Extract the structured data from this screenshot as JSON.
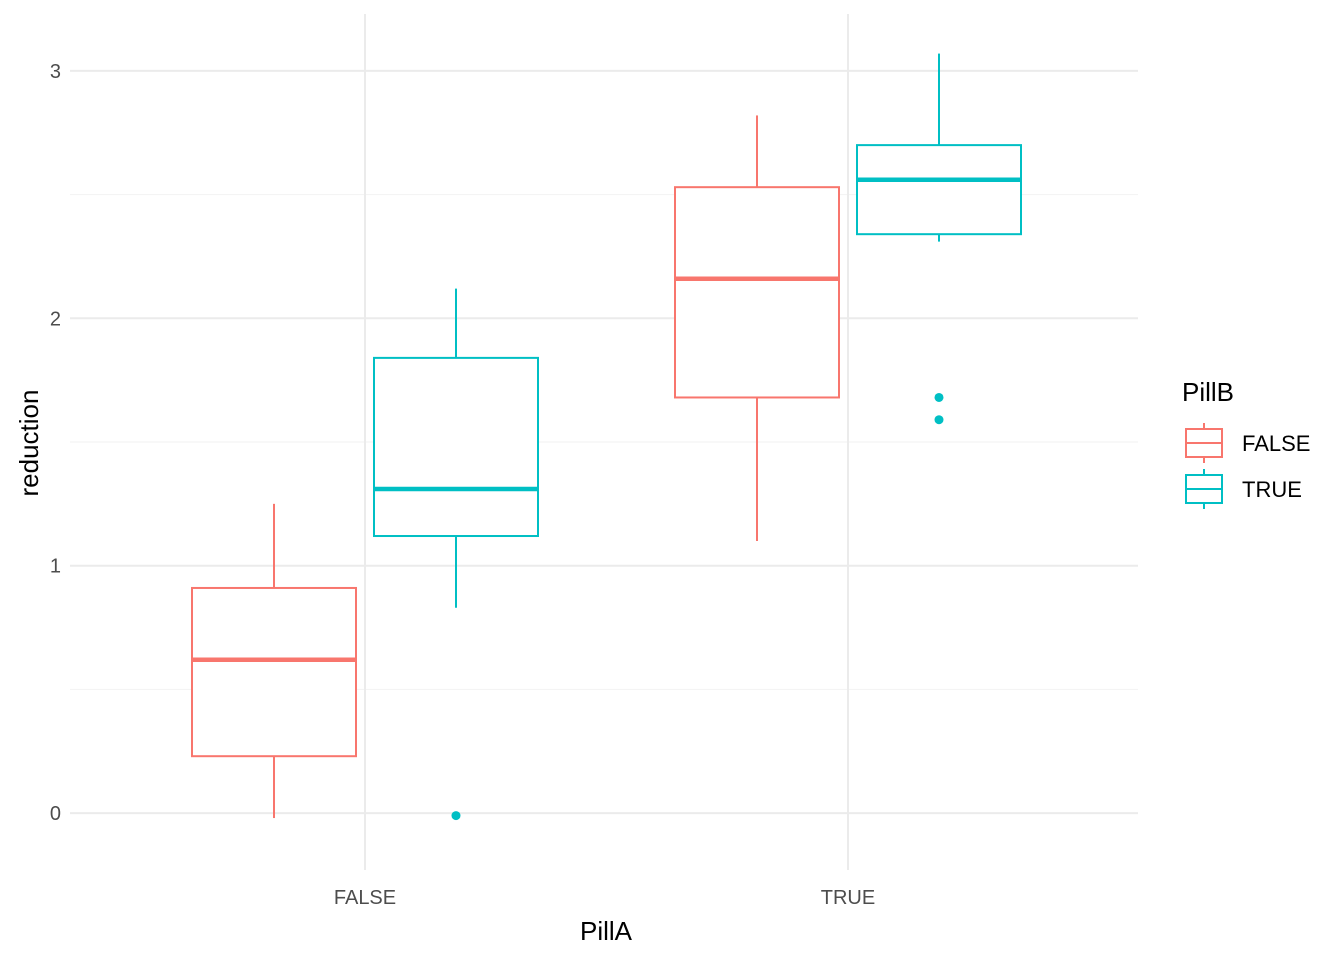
{
  "chart_data": {
    "type": "boxplot",
    "title": "",
    "xlabel": "PillA",
    "ylabel": "reduction",
    "categories": [
      "FALSE",
      "TRUE"
    ],
    "ylim": [
      -0.23,
      3.23
    ],
    "yticks": [
      0,
      1,
      2,
      3
    ],
    "ytick_labels": [
      "0",
      "1",
      "2",
      "3"
    ],
    "grid": true,
    "legend": {
      "title": "PillB",
      "position": "right"
    },
    "series": [
      {
        "name": "FALSE",
        "color": "#F8766D",
        "boxes": [
          {
            "category": "FALSE",
            "whisker_low": -0.02,
            "q1": 0.23,
            "median": 0.62,
            "q3": 0.91,
            "whisker_high": 1.25,
            "outliers": []
          },
          {
            "category": "TRUE",
            "whisker_low": 1.1,
            "q1": 1.68,
            "median": 2.16,
            "q3": 2.53,
            "whisker_high": 2.82,
            "outliers": []
          }
        ]
      },
      {
        "name": "TRUE",
        "color": "#00BFC4",
        "boxes": [
          {
            "category": "FALSE",
            "whisker_low": 0.83,
            "q1": 1.12,
            "median": 1.31,
            "q3": 1.84,
            "whisker_high": 2.12,
            "outliers": [
              -0.01
            ]
          },
          {
            "category": "TRUE",
            "whisker_low": 2.31,
            "q1": 2.34,
            "median": 2.56,
            "q3": 2.7,
            "whisker_high": 3.07,
            "outliers": [
              1.68,
              1.59
            ]
          }
        ]
      }
    ]
  }
}
